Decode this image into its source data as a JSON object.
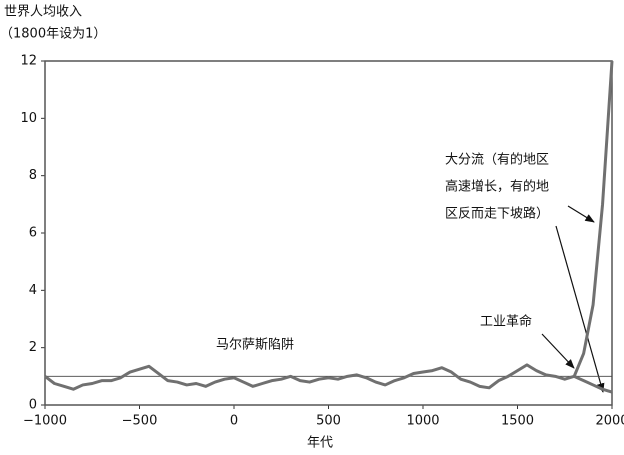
{
  "chart_data": {
    "type": "line",
    "y_label": [
      "世界人均收入",
      "（1800年设为1）"
    ],
    "x_label": "年代",
    "x": [
      -1000,
      -950,
      -900,
      -850,
      -800,
      -750,
      -700,
      -650,
      -600,
      -550,
      -500,
      -450,
      -400,
      -350,
      -300,
      -250,
      -200,
      -150,
      -100,
      -50,
      0,
      50,
      100,
      150,
      200,
      250,
      300,
      350,
      400,
      450,
      500,
      550,
      600,
      650,
      700,
      750,
      800,
      850,
      900,
      950,
      1000,
      1050,
      1100,
      1150,
      1200,
      1250,
      1300,
      1350,
      1400,
      1450,
      1500,
      1550,
      1600,
      1650,
      1700,
      1750,
      1800,
      1850,
      1900,
      1950,
      1975,
      2000
    ],
    "series": [
      {
        "color": "#707070",
        "values": [
          1.0,
          0.75,
          0.65,
          0.55,
          0.7,
          0.75,
          0.85,
          0.85,
          0.95,
          1.15,
          1.25,
          1.35,
          1.1,
          0.85,
          0.8,
          0.7,
          0.75,
          0.65,
          0.8,
          0.9,
          0.95,
          0.8,
          0.65,
          0.75,
          0.85,
          0.9,
          1.0,
          0.85,
          0.8,
          0.9,
          0.95,
          0.9,
          1.0,
          1.05,
          0.95,
          0.8,
          0.7,
          0.85,
          0.95,
          1.1,
          1.15,
          1.2,
          1.3,
          1.15,
          0.9,
          0.8,
          0.65,
          0.6,
          0.85,
          1.0,
          1.2,
          1.4,
          1.2,
          1.05,
          1.0,
          0.9,
          1.0,
          1.8,
          3.5,
          7,
          9.5,
          12
        ]
      },
      {
        "color": "#707070",
        "values": [
          null,
          null,
          null,
          null,
          null,
          null,
          null,
          null,
          null,
          null,
          null,
          null,
          null,
          null,
          null,
          null,
          null,
          null,
          null,
          null,
          null,
          null,
          null,
          null,
          null,
          null,
          null,
          null,
          null,
          null,
          null,
          null,
          null,
          null,
          null,
          null,
          null,
          null,
          null,
          null,
          null,
          null,
          null,
          null,
          null,
          null,
          null,
          null,
          null,
          null,
          null,
          null,
          null,
          null,
          null,
          null,
          1.0,
          0.85,
          0.7,
          0.55,
          0.5,
          0.45
        ]
      }
    ],
    "hline": 1,
    "xlim": [
      -1000,
      2000
    ],
    "xticks": [
      {
        "value": -1000,
        "label": "−1000"
      },
      {
        "value": -500,
        "label": "−500"
      },
      0,
      500,
      1000,
      1500,
      2000
    ],
    "ylim": [
      0,
      12
    ],
    "yticks": [
      0,
      2,
      4,
      6,
      8,
      10,
      12
    ],
    "annotations": [
      {
        "text": "马尔萨斯陷阱"
      },
      {
        "text": "工业革命"
      },
      {
        "lines": [
          "大分流（有的地区",
          "高速增长，有的地",
          "区反而走下坡路）"
        ]
      }
    ]
  }
}
